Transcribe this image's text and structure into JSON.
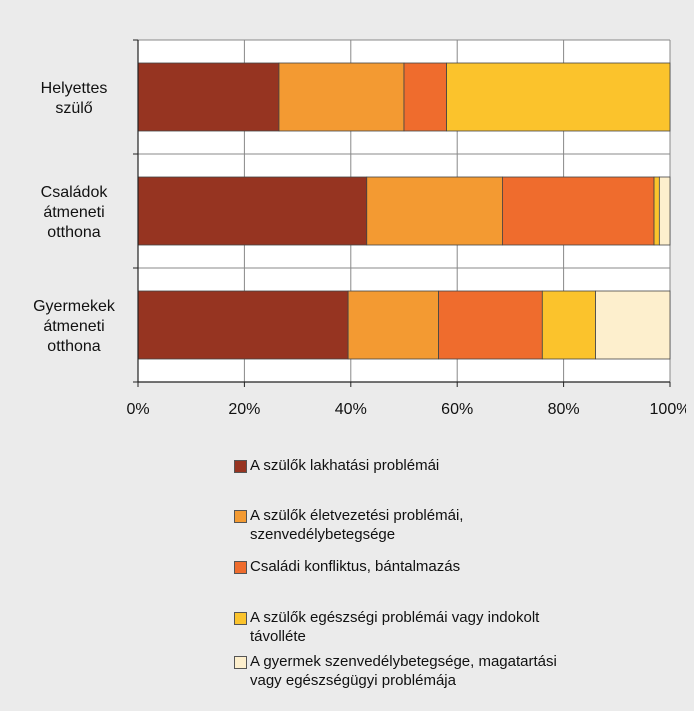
{
  "chart_data": {
    "type": "bar",
    "orientation": "horizontal",
    "stacked": true,
    "categories": [
      "Helyettes\nszülő",
      "Családok\nátmeneti\notthona",
      "Gyermekek\nátmeneti\notthona"
    ],
    "series": [
      {
        "name": "A szülők lakhatási problémái",
        "color": "#963421",
        "values": [
          26.5,
          43,
          39.5
        ]
      },
      {
        "name": "A szülők életvezetési problémái,\nszenvedélybetegsége",
        "color": "#f39a32",
        "values": [
          23.5,
          25.5,
          17
        ]
      },
      {
        "name": "Családi konfliktus, bántalmazás",
        "color": "#ef6c2d",
        "values": [
          8,
          28.5,
          19.5
        ]
      },
      {
        "name": "A szülők egészségi problémái vagy indokolt\ntávolléte",
        "color": "#fbc32c",
        "values": [
          42,
          1,
          10
        ]
      },
      {
        "name": "A gyermek szenvedélybetegsége, magatartási\nvagy egészségügyi problémája",
        "color": "#fdefcd",
        "values": [
          0,
          2,
          14
        ]
      }
    ],
    "xlim": [
      0,
      100
    ],
    "xticks": [
      "0%",
      "20%",
      "40%",
      "60%",
      "80%",
      "100%"
    ],
    "grid": true,
    "legend_position": "bottom"
  }
}
